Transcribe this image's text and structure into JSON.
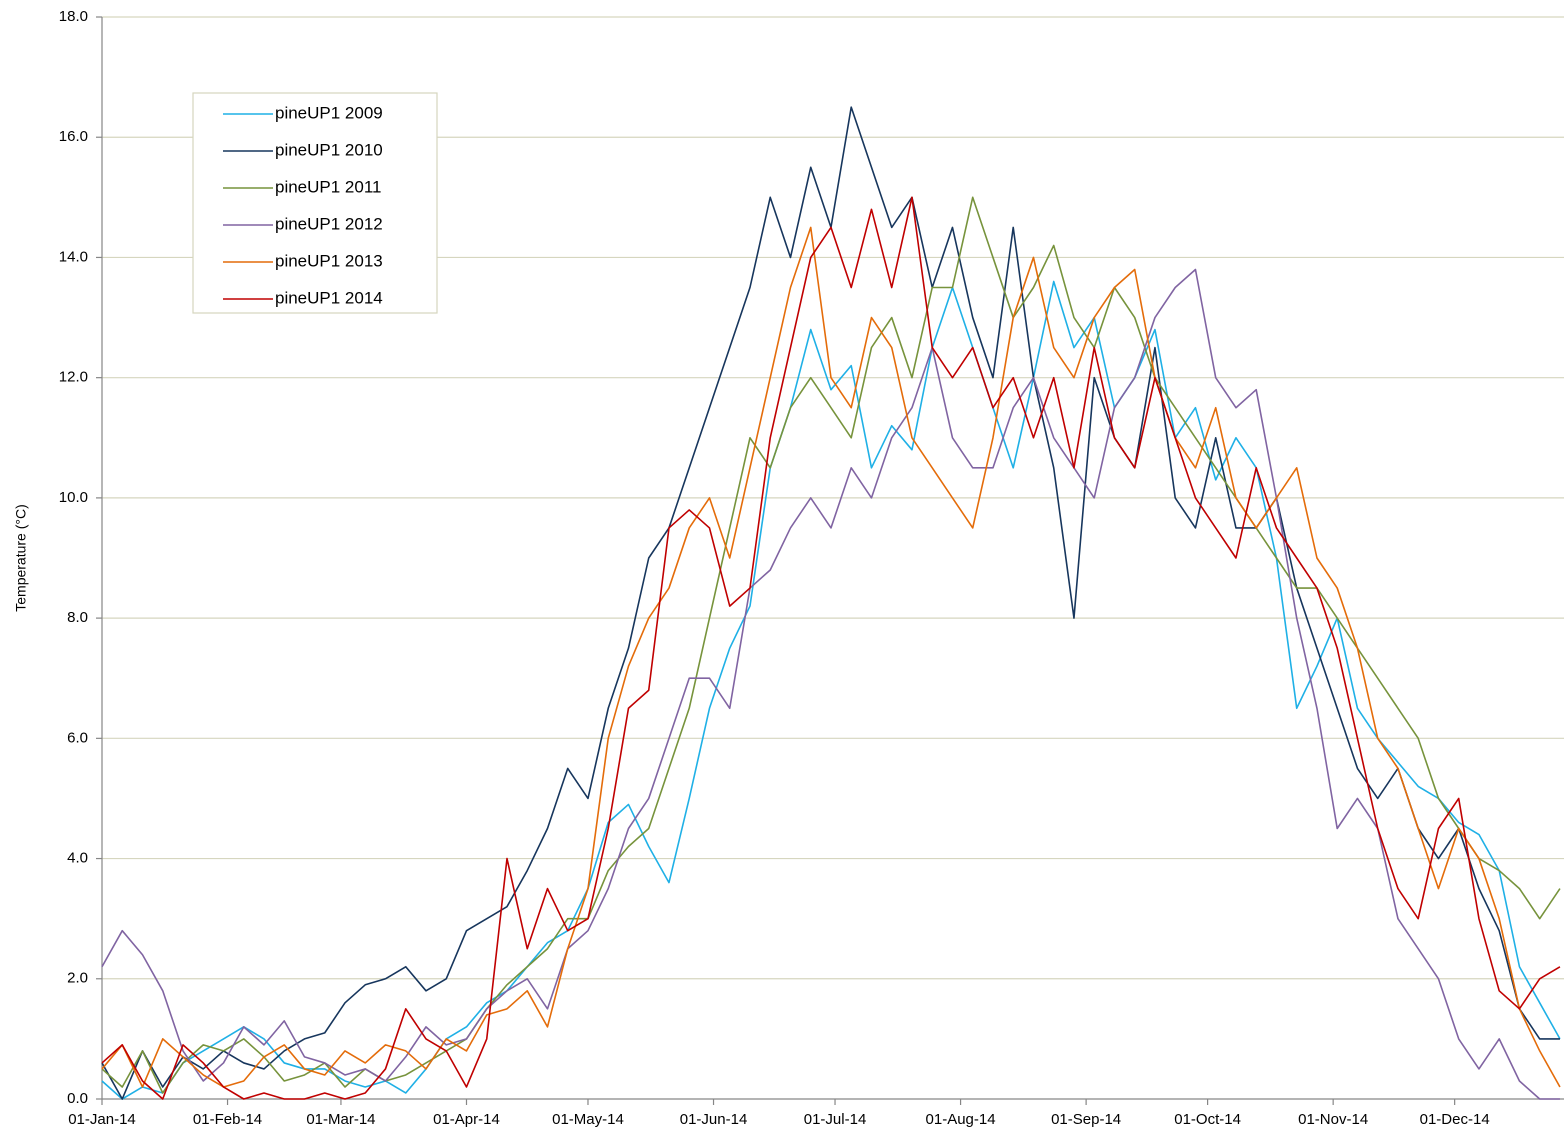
{
  "chart_data": {
    "type": "line",
    "y_label": "Temperature (°C)",
    "x": [
      "2014-01-01",
      "2014-01-06",
      "2014-01-11",
      "2014-01-16",
      "2014-01-21",
      "2014-01-26",
      "2014-01-31",
      "2014-02-05",
      "2014-02-10",
      "2014-02-15",
      "2014-02-20",
      "2014-02-25",
      "2014-03-02",
      "2014-03-07",
      "2014-03-12",
      "2014-03-17",
      "2014-03-22",
      "2014-03-27",
      "2014-04-01",
      "2014-04-06",
      "2014-04-11",
      "2014-04-16",
      "2014-04-21",
      "2014-04-26",
      "2014-05-01",
      "2014-05-06",
      "2014-05-11",
      "2014-05-16",
      "2014-05-21",
      "2014-05-26",
      "2014-05-31",
      "2014-06-05",
      "2014-06-10",
      "2014-06-15",
      "2014-06-20",
      "2014-06-25",
      "2014-06-30",
      "2014-07-05",
      "2014-07-10",
      "2014-07-15",
      "2014-07-20",
      "2014-07-25",
      "2014-07-30",
      "2014-08-04",
      "2014-08-09",
      "2014-08-14",
      "2014-08-19",
      "2014-08-24",
      "2014-08-29",
      "2014-09-03",
      "2014-09-08",
      "2014-09-13",
      "2014-09-18",
      "2014-09-23",
      "2014-09-28",
      "2014-10-03",
      "2014-10-08",
      "2014-10-13",
      "2014-10-18",
      "2014-10-23",
      "2014-10-28",
      "2014-11-02",
      "2014-11-07",
      "2014-11-12",
      "2014-11-17",
      "2014-11-22",
      "2014-11-27",
      "2014-12-02",
      "2014-12-07",
      "2014-12-12",
      "2014-12-17",
      "2014-12-22",
      "2014-12-27"
    ],
    "series": [
      {
        "name": "pineUP1 2009",
        "color": "#1fb0e6",
        "values": [
          0.3,
          0.0,
          0.2,
          0.1,
          0.6,
          0.8,
          1.0,
          1.2,
          1.0,
          0.6,
          0.5,
          0.5,
          0.3,
          0.2,
          0.3,
          0.1,
          0.5,
          1.0,
          1.2,
          1.6,
          1.8,
          2.2,
          2.6,
          2.8,
          3.5,
          4.6,
          4.9,
          4.2,
          3.6,
          5.0,
          6.5,
          7.5,
          8.2,
          10.5,
          11.5,
          12.8,
          11.8,
          12.2,
          10.5,
          11.2,
          10.8,
          12.5,
          13.5,
          12.5,
          11.5,
          10.5,
          12.0,
          13.6,
          12.5,
          13.0,
          11.5,
          12.0,
          12.8,
          11.0,
          11.5,
          10.3,
          11.0,
          10.5,
          9.0,
          6.5,
          7.2,
          8.0,
          6.5,
          6.0,
          5.6,
          5.2,
          5.0,
          4.6,
          4.4,
          3.8,
          2.2,
          1.6,
          1.0
        ]
      },
      {
        "name": "pineUP1 2010",
        "color": "#17365d",
        "values": [
          0.6,
          0.0,
          0.8,
          0.2,
          0.7,
          0.5,
          0.8,
          0.6,
          0.5,
          0.8,
          1.0,
          1.1,
          1.6,
          1.9,
          2.0,
          2.2,
          1.8,
          2.0,
          2.8,
          3.0,
          3.2,
          3.8,
          4.5,
          5.5,
          5.0,
          6.5,
          7.5,
          9.0,
          9.5,
          10.5,
          11.5,
          12.5,
          13.5,
          15.0,
          14.0,
          15.5,
          14.5,
          16.5,
          15.5,
          14.5,
          15.0,
          13.5,
          14.5,
          13.0,
          12.0,
          14.5,
          12.0,
          10.5,
          8.0,
          12.0,
          11.0,
          10.5,
          12.5,
          10.0,
          9.5,
          11.0,
          9.5,
          9.5,
          10.0,
          8.5,
          7.5,
          6.5,
          5.5,
          5.0,
          5.5,
          4.5,
          4.0,
          4.5,
          3.5,
          2.8,
          1.5,
          1.0,
          1.0
        ]
      },
      {
        "name": "pineUP1 2011",
        "color": "#77933c",
        "values": [
          0.5,
          0.2,
          0.8,
          0.1,
          0.6,
          0.9,
          0.8,
          1.0,
          0.7,
          0.3,
          0.4,
          0.6,
          0.2,
          0.5,
          0.3,
          0.4,
          0.6,
          0.8,
          1.0,
          1.5,
          1.9,
          2.2,
          2.5,
          3.0,
          3.0,
          3.8,
          4.2,
          4.5,
          5.5,
          6.5,
          8.0,
          9.5,
          11.0,
          10.5,
          11.5,
          12.0,
          11.5,
          11.0,
          12.5,
          13.0,
          12.0,
          13.5,
          13.5,
          15.0,
          14.0,
          13.0,
          13.5,
          14.2,
          13.0,
          12.5,
          13.5,
          13.0,
          12.0,
          11.5,
          11.0,
          10.5,
          10.0,
          9.5,
          9.0,
          8.5,
          8.5,
          8.0,
          7.5,
          7.0,
          6.5,
          6.0,
          5.0,
          4.5,
          4.0,
          3.8,
          3.5,
          3.0,
          3.5
        ]
      },
      {
        "name": "pineUP1 2012",
        "color": "#8064a2",
        "values": [
          2.2,
          2.8,
          2.4,
          1.8,
          0.8,
          0.3,
          0.6,
          1.2,
          0.9,
          1.3,
          0.7,
          0.6,
          0.4,
          0.5,
          0.3,
          0.7,
          1.2,
          0.9,
          1.0,
          1.5,
          1.8,
          2.0,
          1.5,
          2.5,
          2.8,
          3.5,
          4.5,
          5.0,
          6.0,
          7.0,
          7.0,
          6.5,
          8.5,
          8.8,
          9.5,
          10.0,
          9.5,
          10.5,
          10.0,
          11.0,
          11.5,
          12.5,
          11.0,
          10.5,
          10.5,
          11.5,
          12.0,
          11.0,
          10.5,
          10.0,
          11.5,
          12.0,
          13.0,
          13.5,
          13.8,
          12.0,
          11.5,
          11.8,
          10.0,
          8.0,
          6.5,
          4.5,
          5.0,
          4.5,
          3.0,
          2.5,
          2.0,
          1.0,
          0.5,
          1.0,
          0.3,
          0.0,
          0.0
        ]
      },
      {
        "name": "pineUP1 2013",
        "color": "#e46c0a",
        "values": [
          0.5,
          0.9,
          0.2,
          1.0,
          0.7,
          0.4,
          0.2,
          0.3,
          0.7,
          0.9,
          0.5,
          0.4,
          0.8,
          0.6,
          0.9,
          0.8,
          0.5,
          1.0,
          0.8,
          1.4,
          1.5,
          1.8,
          1.2,
          2.5,
          3.5,
          6.0,
          7.2,
          8.0,
          8.5,
          9.5,
          10.0,
          9.0,
          10.5,
          12.0,
          13.5,
          14.5,
          12.0,
          11.5,
          13.0,
          12.5,
          11.0,
          10.5,
          10.0,
          9.5,
          11.0,
          13.0,
          14.0,
          12.5,
          12.0,
          13.0,
          13.5,
          13.8,
          12.0,
          11.0,
          10.5,
          11.5,
          10.0,
          9.5,
          10.0,
          10.5,
          9.0,
          8.5,
          7.5,
          6.0,
          5.5,
          4.5,
          3.5,
          4.5,
          4.0,
          3.0,
          1.5,
          0.8,
          0.2
        ]
      },
      {
        "name": "pineUP1 2014",
        "color": "#c00000",
        "values": [
          0.6,
          0.9,
          0.3,
          0.0,
          0.9,
          0.6,
          0.2,
          0.0,
          0.1,
          0.0,
          0.0,
          0.1,
          0.0,
          0.1,
          0.5,
          1.5,
          1.0,
          0.8,
          0.2,
          1.0,
          4.0,
          2.5,
          3.5,
          2.8,
          3.0,
          4.5,
          6.5,
          6.8,
          9.5,
          9.8,
          9.5,
          8.2,
          8.5,
          11.0,
          12.5,
          14.0,
          14.5,
          13.5,
          14.8,
          13.5,
          15.0,
          12.5,
          12.0,
          12.5,
          11.5,
          12.0,
          11.0,
          12.0,
          10.5,
          12.5,
          11.0,
          10.5,
          12.0,
          11.0,
          10.0,
          9.5,
          9.0,
          10.5,
          9.5,
          9.0,
          8.5,
          7.5,
          6.0,
          4.5,
          3.5,
          3.0,
          4.5,
          5.0,
          3.0,
          1.8,
          1.5,
          2.0,
          2.2
        ]
      }
    ],
    "xlim": [
      "2014-01-01",
      "2014-12-28"
    ],
    "xticks": [
      {
        "value": "2014-01-01",
        "label": "01-Jan-14"
      },
      {
        "value": "2014-02-01",
        "label": "01-Feb-14"
      },
      {
        "value": "2014-03-01",
        "label": "01-Mar-14"
      },
      {
        "value": "2014-04-01",
        "label": "01-Apr-14"
      },
      {
        "value": "2014-05-01",
        "label": "01-May-14"
      },
      {
        "value": "2014-06-01",
        "label": "01-Jun-14"
      },
      {
        "value": "2014-07-01",
        "label": "01-Jul-14"
      },
      {
        "value": "2014-08-01",
        "label": "01-Aug-14"
      },
      {
        "value": "2014-09-01",
        "label": "01-Sep-14"
      },
      {
        "value": "2014-10-01",
        "label": "01-Oct-14"
      },
      {
        "value": "2014-11-01",
        "label": "01-Nov-14"
      },
      {
        "value": "2014-12-01",
        "label": "01-Dec-14"
      }
    ],
    "ylim": [
      0,
      18
    ],
    "yticks": [
      {
        "value": 0,
        "label": "0.0"
      },
      {
        "value": 2,
        "label": "2.0"
      },
      {
        "value": 4,
        "label": "4.0"
      },
      {
        "value": 6,
        "label": "6.0"
      },
      {
        "value": 8,
        "label": "8.0"
      },
      {
        "value": 10,
        "label": "10.0"
      },
      {
        "value": 12,
        "label": "12.0"
      },
      {
        "value": 14,
        "label": "14.0"
      },
      {
        "value": 16,
        "label": "16.0"
      },
      {
        "value": 18,
        "label": "18.0"
      }
    ],
    "grid": true,
    "legend": "upper-left"
  }
}
